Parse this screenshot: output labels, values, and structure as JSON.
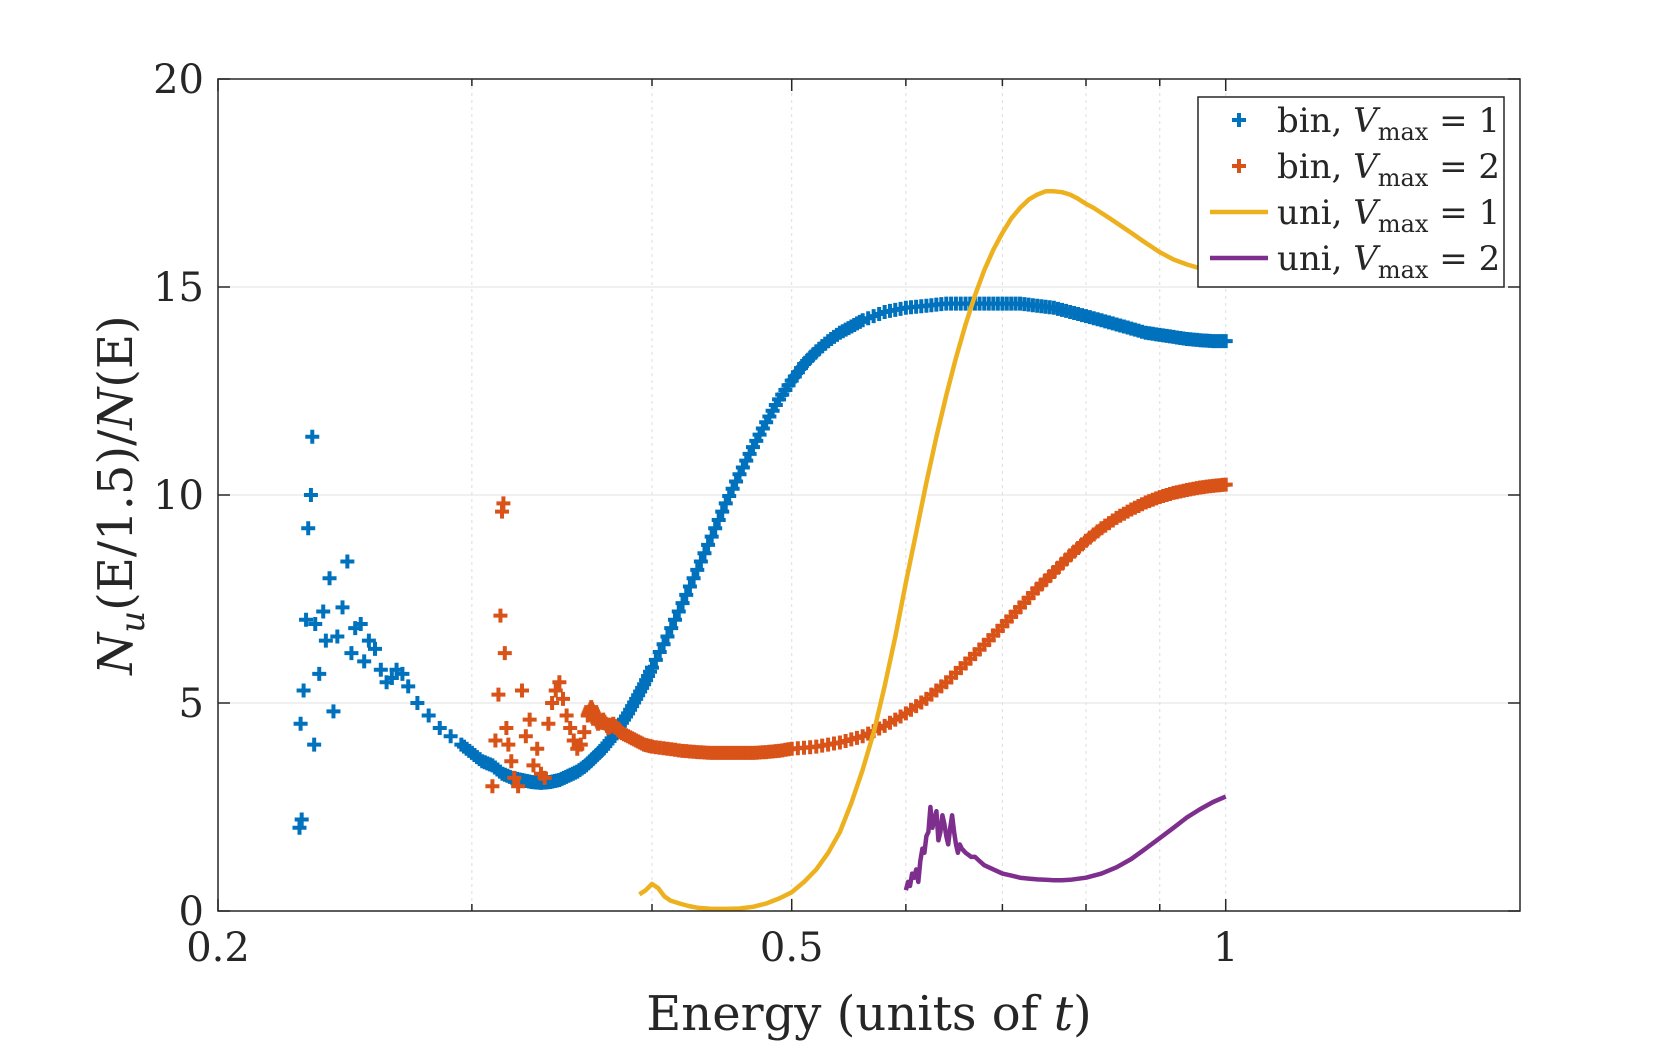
{
  "chart_data": {
    "type": "scatter",
    "title": "",
    "xlabel": "Energy (units of t)",
    "xlabel_parts": {
      "main": "Energy (units of ",
      "var": "t",
      "close": ")"
    },
    "ylabel": "N_u(E/1.5)/N(E)",
    "ylabel_parts": {
      "N": "N",
      "sub": "u",
      "mid": "(E/1.5)/",
      "N2": "N",
      "tail": "(E)"
    },
    "x_scale": "log",
    "xlim": [
      0.2,
      1.6
    ],
    "ylim": [
      0,
      20
    ],
    "xticks": [
      0.2,
      0.5,
      1
    ],
    "xtick_labels": [
      "0.2",
      "0.5",
      "1"
    ],
    "x_minor_ticks": [
      0.3,
      0.4,
      0.6,
      0.7,
      0.8,
      0.9
    ],
    "yticks": [
      0,
      5,
      10,
      15,
      20
    ],
    "ytick_labels": [
      "0",
      "5",
      "10",
      "15",
      "20"
    ],
    "grid": true,
    "legend_position": "top-right",
    "series": [
      {
        "name": "bin, V_max = 1",
        "legend": {
          "prefix": "bin, ",
          "var": "V",
          "sub": "max",
          "eq": " = 1"
        },
        "kind": "points",
        "color": "#0072BD",
        "x": [
          0.2278,
          0.2286,
          0.2282,
          0.2293,
          0.2302,
          0.231,
          0.232,
          0.2325,
          0.2332,
          0.2336,
          0.2351,
          0.2366,
          0.2376,
          0.239,
          0.2405,
          0.242,
          0.244,
          0.2459,
          0.2475,
          0.249,
          0.2512,
          0.2526,
          0.2545,
          0.257,
          0.2594,
          0.2618,
          0.264,
          0.266,
          0.2685,
          0.271,
          0.275,
          0.28,
          0.285,
          0.29,
          0.295,
          0.3,
          0.305,
          0.31,
          0.315,
          0.32,
          0.325,
          0.33,
          0.335,
          0.34,
          0.345,
          0.35,
          0.355,
          0.36,
          0.365,
          0.37,
          0.375,
          0.38,
          0.385,
          0.39,
          0.395,
          0.4,
          0.41,
          0.42,
          0.43,
          0.44,
          0.45,
          0.46,
          0.47,
          0.48,
          0.49,
          0.5,
          0.51,
          0.52,
          0.53,
          0.54,
          0.55,
          0.56,
          0.58,
          0.6,
          0.62,
          0.64,
          0.66,
          0.68,
          0.7,
          0.72,
          0.74,
          0.76,
          0.78,
          0.8,
          0.82,
          0.84,
          0.86,
          0.88,
          0.9,
          0.92,
          0.94,
          0.96,
          0.98,
          1.0
        ],
        "y": [
          2.0,
          2.2,
          4.5,
          5.3,
          7.0,
          9.2,
          10.0,
          11.4,
          4.0,
          6.9,
          5.7,
          7.2,
          6.5,
          8.0,
          4.8,
          6.6,
          7.3,
          8.4,
          6.2,
          6.8,
          6.9,
          6.0,
          6.5,
          6.3,
          5.8,
          5.5,
          5.6,
          5.8,
          5.7,
          5.4,
          5.0,
          4.7,
          4.4,
          4.2,
          4.0,
          3.8,
          3.6,
          3.5,
          3.3,
          3.2,
          3.15,
          3.1,
          3.08,
          3.1,
          3.15,
          3.25,
          3.35,
          3.5,
          3.7,
          3.9,
          4.15,
          4.45,
          4.75,
          5.1,
          5.45,
          5.85,
          6.6,
          7.4,
          8.2,
          9.0,
          9.8,
          10.5,
          11.15,
          11.75,
          12.3,
          12.75,
          13.15,
          13.45,
          13.7,
          13.9,
          14.05,
          14.2,
          14.4,
          14.5,
          14.55,
          14.6,
          14.6,
          14.6,
          14.6,
          14.6,
          14.55,
          14.5,
          14.4,
          14.3,
          14.2,
          14.1,
          14.0,
          13.9,
          13.85,
          13.8,
          13.75,
          13.72,
          13.7,
          13.7
        ]
      },
      {
        "name": "bin, V_max = 2",
        "legend": {
          "prefix": "bin, ",
          "var": "V",
          "sub": "max",
          "eq": " = 2"
        },
        "kind": "points",
        "color": "#D95319",
        "x": [
          0.31,
          0.3115,
          0.313,
          0.314,
          0.3148,
          0.3155,
          0.3162,
          0.317,
          0.318,
          0.3195,
          0.321,
          0.323,
          0.325,
          0.327,
          0.329,
          0.331,
          0.333,
          0.335,
          0.337,
          0.339,
          0.341,
          0.343,
          0.345,
          0.347,
          0.349,
          0.351,
          0.353,
          0.355,
          0.357,
          0.359,
          0.361,
          0.363,
          0.365,
          0.367,
          0.37,
          0.373,
          0.376,
          0.38,
          0.385,
          0.39,
          0.395,
          0.4,
          0.41,
          0.42,
          0.43,
          0.44,
          0.45,
          0.46,
          0.47,
          0.48,
          0.49,
          0.5,
          0.52,
          0.54,
          0.56,
          0.58,
          0.6,
          0.62,
          0.64,
          0.66,
          0.68,
          0.7,
          0.72,
          0.74,
          0.76,
          0.78,
          0.8,
          0.82,
          0.84,
          0.86,
          0.88,
          0.9,
          0.92,
          0.94,
          0.96,
          0.98,
          1.0
        ],
        "y": [
          3.0,
          4.1,
          5.2,
          7.1,
          9.6,
          9.8,
          6.2,
          4.4,
          4.0,
          3.6,
          3.2,
          3.0,
          5.3,
          4.2,
          4.6,
          3.5,
          3.9,
          3.3,
          3.2,
          4.5,
          5.0,
          5.3,
          5.5,
          5.1,
          4.7,
          4.4,
          4.1,
          3.9,
          4.0,
          4.3,
          4.7,
          4.9,
          4.7,
          4.5,
          4.6,
          4.4,
          4.5,
          4.3,
          4.2,
          4.1,
          4.0,
          3.95,
          3.9,
          3.85,
          3.82,
          3.8,
          3.8,
          3.8,
          3.8,
          3.82,
          3.85,
          3.9,
          3.95,
          4.05,
          4.2,
          4.45,
          4.75,
          5.1,
          5.5,
          5.95,
          6.4,
          6.85,
          7.3,
          7.75,
          8.15,
          8.55,
          8.9,
          9.2,
          9.45,
          9.65,
          9.82,
          9.95,
          10.05,
          10.12,
          10.18,
          10.22,
          10.25
        ]
      },
      {
        "name": "uni, V_max = 1",
        "legend": {
          "prefix": "uni, ",
          "var": "V",
          "sub": "max",
          "eq": " = 1"
        },
        "kind": "line",
        "color": "#EDB120",
        "x": [
          0.392,
          0.396,
          0.4,
          0.404,
          0.408,
          0.412,
          0.418,
          0.424,
          0.43,
          0.44,
          0.45,
          0.46,
          0.47,
          0.48,
          0.49,
          0.5,
          0.51,
          0.52,
          0.53,
          0.54,
          0.55,
          0.56,
          0.57,
          0.58,
          0.59,
          0.6,
          0.61,
          0.62,
          0.63,
          0.64,
          0.65,
          0.66,
          0.67,
          0.68,
          0.69,
          0.7,
          0.71,
          0.72,
          0.73,
          0.74,
          0.75,
          0.76,
          0.77,
          0.78,
          0.79,
          0.8,
          0.81,
          0.82,
          0.83,
          0.84,
          0.86,
          0.88,
          0.9,
          0.92,
          0.94,
          0.96,
          0.98,
          1.0
        ],
        "y": [
          0.4,
          0.5,
          0.65,
          0.55,
          0.35,
          0.25,
          0.18,
          0.12,
          0.08,
          0.05,
          0.05,
          0.06,
          0.1,
          0.18,
          0.3,
          0.45,
          0.7,
          1.0,
          1.4,
          1.9,
          2.6,
          3.4,
          4.3,
          5.4,
          6.6,
          7.9,
          9.1,
          10.3,
          11.4,
          12.4,
          13.3,
          14.1,
          14.8,
          15.4,
          15.9,
          16.3,
          16.65,
          16.9,
          17.1,
          17.22,
          17.3,
          17.3,
          17.28,
          17.22,
          17.12,
          17.0,
          16.9,
          16.78,
          16.66,
          16.54,
          16.3,
          16.06,
          15.84,
          15.66,
          15.54,
          15.45,
          15.38,
          15.32
        ]
      },
      {
        "name": "uni, V_max = 2",
        "legend": {
          "prefix": "uni, ",
          "var": "V",
          "sub": "max",
          "eq": " = 2"
        },
        "kind": "line",
        "color": "#7E2F8E",
        "x": [
          0.6,
          0.602,
          0.604,
          0.606,
          0.608,
          0.61,
          0.612,
          0.614,
          0.616,
          0.618,
          0.62,
          0.622,
          0.624,
          0.626,
          0.628,
          0.63,
          0.632,
          0.634,
          0.636,
          0.638,
          0.64,
          0.642,
          0.644,
          0.646,
          0.648,
          0.65,
          0.652,
          0.654,
          0.656,
          0.658,
          0.66,
          0.663,
          0.666,
          0.67,
          0.675,
          0.68,
          0.685,
          0.69,
          0.7,
          0.71,
          0.72,
          0.73,
          0.74,
          0.75,
          0.76,
          0.77,
          0.78,
          0.8,
          0.82,
          0.84,
          0.86,
          0.88,
          0.9,
          0.92,
          0.94,
          0.96,
          0.98,
          1.0
        ],
        "y": [
          0.5,
          0.7,
          0.6,
          0.9,
          0.8,
          1.0,
          0.7,
          1.2,
          1.5,
          1.4,
          1.8,
          1.9,
          2.5,
          2.0,
          2.2,
          2.4,
          1.7,
          1.9,
          2.3,
          2.1,
          1.8,
          1.6,
          2.0,
          2.3,
          1.9,
          1.6,
          1.4,
          1.6,
          1.5,
          1.45,
          1.4,
          1.35,
          1.3,
          1.3,
          1.2,
          1.1,
          1.05,
          1.0,
          0.9,
          0.85,
          0.8,
          0.78,
          0.76,
          0.75,
          0.74,
          0.74,
          0.75,
          0.8,
          0.9,
          1.05,
          1.25,
          1.5,
          1.75,
          2.0,
          2.25,
          2.45,
          2.62,
          2.75
        ]
      }
    ]
  }
}
